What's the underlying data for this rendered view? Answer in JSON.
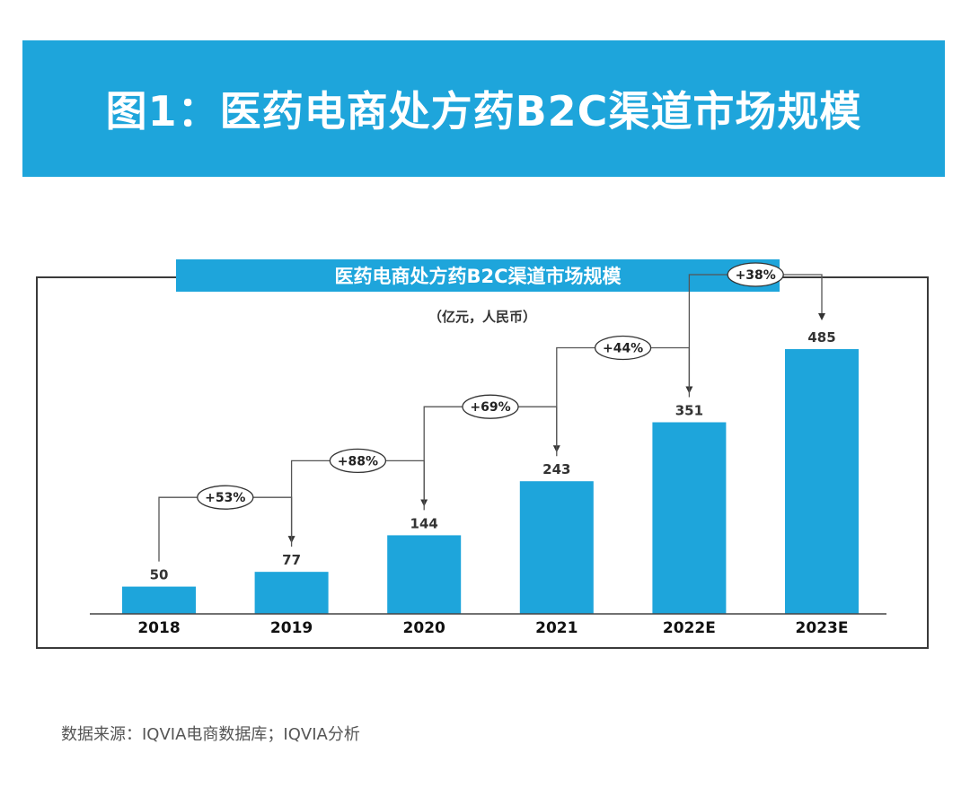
{
  "header": {
    "title": "图1：医药电商处方药B2C渠道市场规模"
  },
  "chart_data": {
    "type": "bar",
    "title": "医药电商处方药B2C渠道市场规模",
    "unit": "（亿元，人民币）",
    "categories": [
      "2018",
      "2019",
      "2020",
      "2021",
      "2022E",
      "2023E"
    ],
    "values": [
      50,
      77,
      144,
      243,
      351,
      485
    ],
    "growth": [
      "+53%",
      "+88%",
      "+69%",
      "+44%",
      "+38%"
    ],
    "color": "#1ea5db",
    "ylim": [
      0,
      485
    ],
    "grid": false,
    "legend": "none"
  },
  "footer": {
    "source": "数据来源：IQVIA电商数据库；IQVIA分析"
  }
}
